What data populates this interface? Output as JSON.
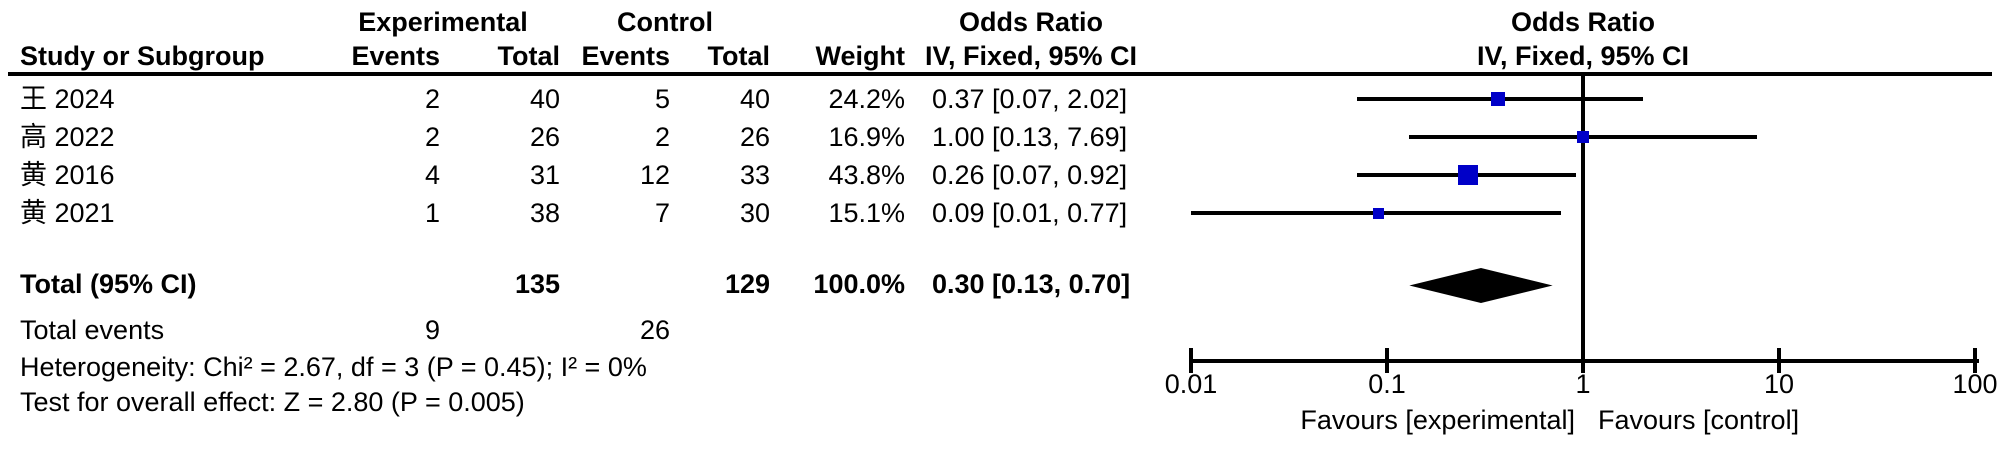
{
  "chart_data": {
    "type": "forest_plot",
    "measure": "Odds Ratio",
    "method": "IV, Fixed, 95% CI",
    "group_experimental": "Experimental",
    "group_control": "Control",
    "headers": {
      "study": "Study or Subgroup",
      "events": "Events",
      "total": "Total",
      "weight": "Weight"
    },
    "studies": [
      {
        "name": "王 2024",
        "exp_events": "2",
        "exp_total": "40",
        "ctrl_events": "5",
        "ctrl_total": "40",
        "weight": "24.2%",
        "or": 0.37,
        "ci_low": 0.07,
        "ci_high": 2.02,
        "or_text": "0.37 [0.07, 2.02]"
      },
      {
        "name": "高 2022",
        "exp_events": "2",
        "exp_total": "26",
        "ctrl_events": "2",
        "ctrl_total": "26",
        "weight": "16.9%",
        "or": 1.0,
        "ci_low": 0.13,
        "ci_high": 7.69,
        "or_text": "1.00 [0.13, 7.69]"
      },
      {
        "name": "黄 2016",
        "exp_events": "4",
        "exp_total": "31",
        "ctrl_events": "12",
        "ctrl_total": "33",
        "weight": "43.8%",
        "or": 0.26,
        "ci_low": 0.07,
        "ci_high": 0.92,
        "or_text": "0.26 [0.07, 0.92]"
      },
      {
        "name": "黄 2021",
        "exp_events": "1",
        "exp_total": "38",
        "ctrl_events": "7",
        "ctrl_total": "30",
        "weight": "15.1%",
        "or": 0.09,
        "ci_low": 0.01,
        "ci_high": 0.77,
        "or_text": "0.09 [0.01, 0.77]"
      }
    ],
    "total": {
      "label": "Total (95% CI)",
      "exp_total": "135",
      "ctrl_total": "129",
      "weight": "100.0%",
      "or": 0.3,
      "ci_low": 0.13,
      "ci_high": 0.7,
      "or_text": "0.30 [0.13, 0.70]"
    },
    "total_events": {
      "label": "Total events",
      "experimental": "9",
      "control": "26"
    },
    "heterogeneity": "Heterogeneity: Chi² = 2.67, df = 3 (P = 0.45); I² = 0%",
    "overall_effect": "Test for overall effect: Z = 2.80 (P = 0.005)",
    "axis": {
      "scale": "log",
      "xlim": [
        0.01,
        100
      ],
      "ticks": [
        0.01,
        0.1,
        1,
        10,
        100
      ],
      "tick_labels": [
        "0.01",
        "0.1",
        "1",
        "10",
        "100"
      ],
      "null_line": 1
    },
    "favours_left": "Favours [experimental]",
    "favours_right": "Favours [control]",
    "marker_color": "#0000C8",
    "line_color": "#000000"
  }
}
